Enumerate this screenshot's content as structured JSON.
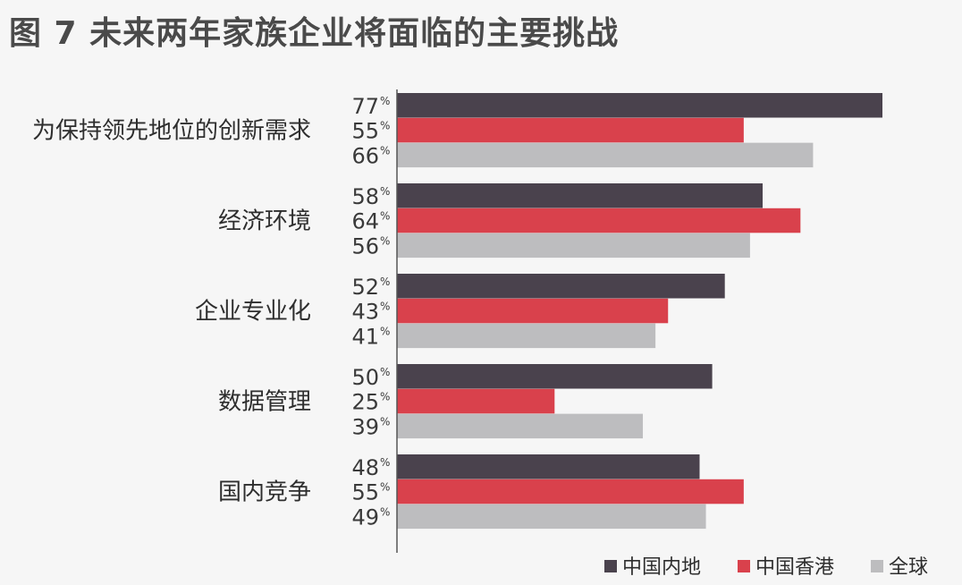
{
  "title": "图 7 未来两年家族企业将面临的主要挑战",
  "chart_data": {
    "type": "bar",
    "orientation": "horizontal",
    "title": "图 7 未来两年家族企业将面临的主要挑战",
    "categories": [
      "为保持领先地位的创新需求",
      "经济环境",
      "企业专业化",
      "数据管理",
      "国内竞争"
    ],
    "series": [
      {
        "name": "中国内地",
        "color": "#4a424d",
        "values": [
          77,
          58,
          52,
          50,
          48
        ]
      },
      {
        "name": "中国香港",
        "color": "#d9414c",
        "values": [
          55,
          64,
          43,
          25,
          55
        ]
      },
      {
        "name": "全球",
        "color": "#bdbdbf",
        "values": [
          66,
          56,
          41,
          39,
          49
        ]
      }
    ],
    "value_suffix": "%",
    "xlim": [
      0,
      77
    ],
    "legend": "bottom-right",
    "grid": false
  }
}
